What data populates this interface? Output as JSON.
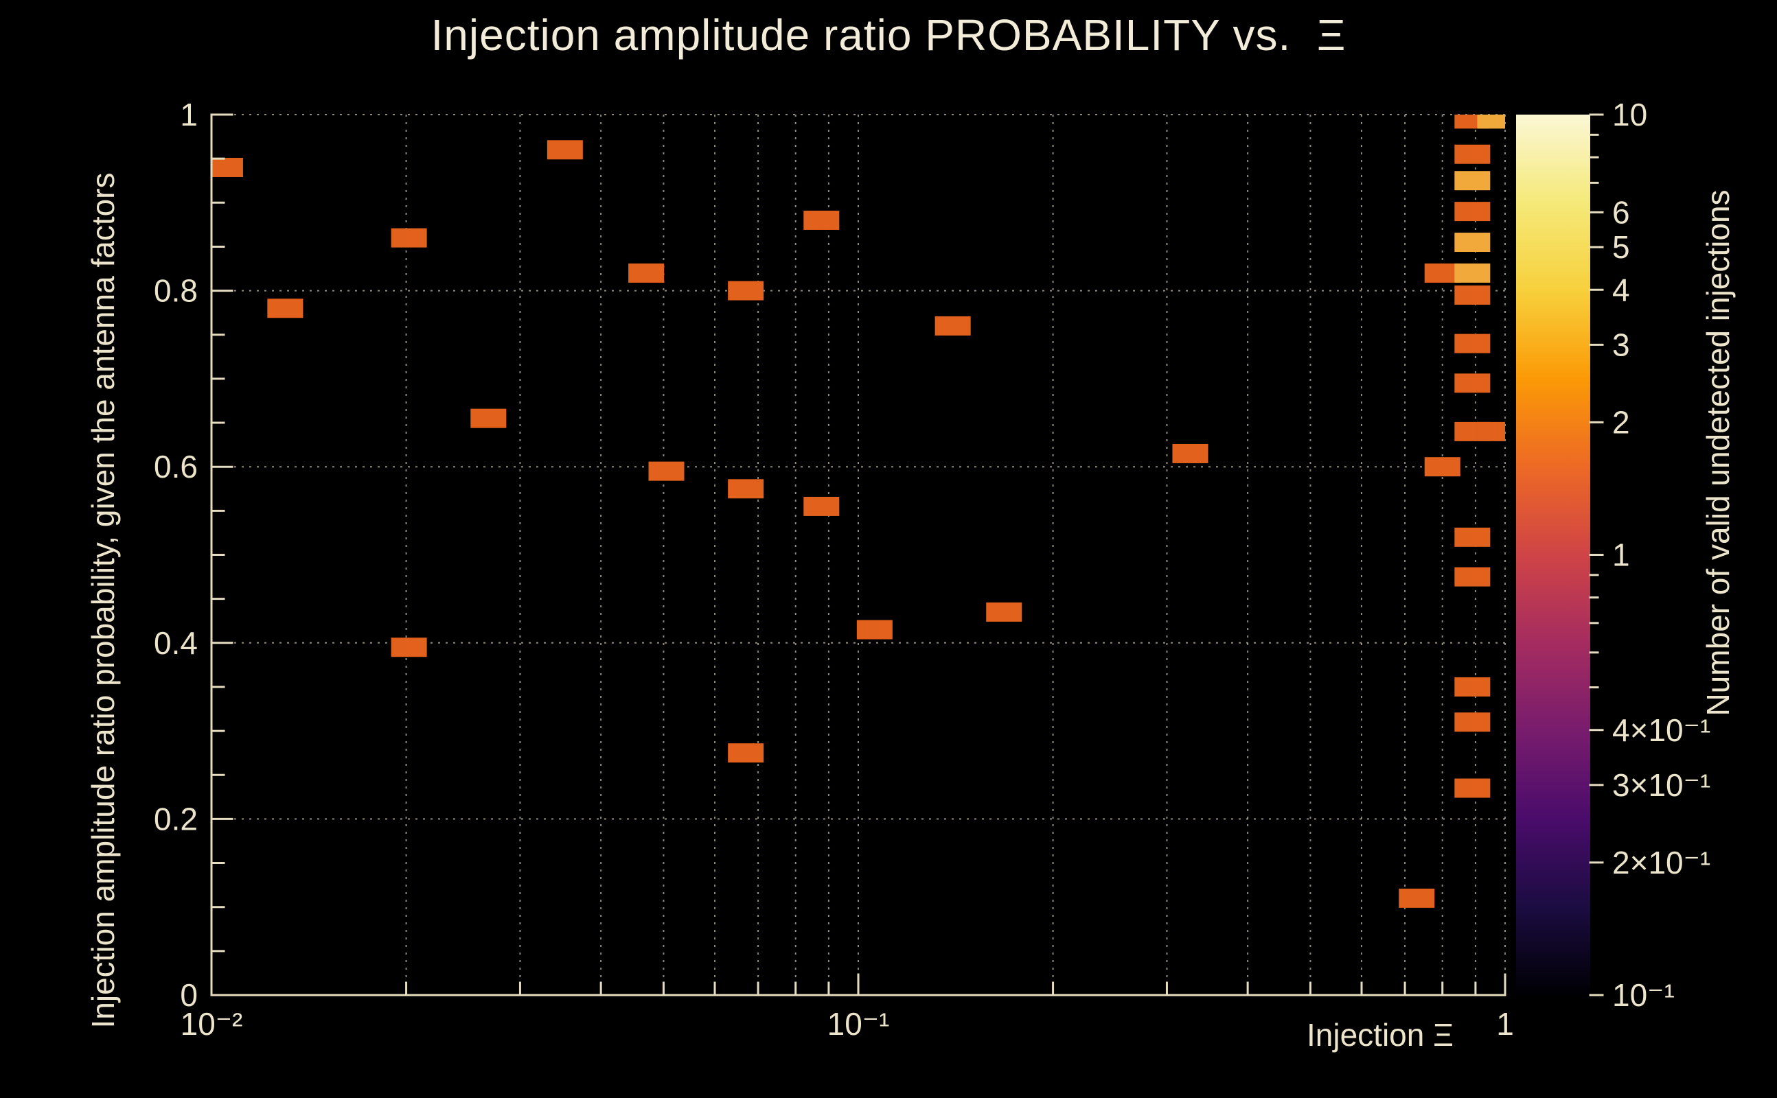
{
  "title": "Injection amplitude ratio PROBABILITY vs.  Ξ",
  "axes": {
    "x_label": "Injection Ξ",
    "y_label": "Injection amplitude ratio probability, given the antenna factors",
    "z_label": "Number of valid undetected injections"
  },
  "colors": {
    "background": "#000000",
    "text": "#ece4cb",
    "axis": "#e6dcc0",
    "grid": "#cfc6ad",
    "title": "#f3ecd8"
  },
  "chart_data": {
    "type": "heatmap",
    "x_scale": "log",
    "y_scale": "linear",
    "z_scale": "log",
    "xlim": [
      0.01,
      1
    ],
    "ylim": [
      0,
      1
    ],
    "zlim": [
      0.1,
      10
    ],
    "grid": true,
    "legend_position": "colorbar-right",
    "marker": {
      "w": 52,
      "h": 28
    },
    "palette": {
      "1": "#e2611c",
      "3": "#f1a93c",
      "4": "#f6c04e"
    },
    "colorbar_gradient": [
      [
        0.0,
        "#000004"
      ],
      [
        0.1,
        "#1b0c41"
      ],
      [
        0.2,
        "#4a0c6b"
      ],
      [
        0.3,
        "#781c6d"
      ],
      [
        0.4,
        "#a52c60"
      ],
      [
        0.5,
        "#cf4446"
      ],
      [
        0.6,
        "#ed6925"
      ],
      [
        0.7,
        "#fb9a06"
      ],
      [
        0.8,
        "#f7d03c"
      ],
      [
        0.9,
        "#f5e979"
      ],
      [
        1.0,
        "#fbf7d5"
      ]
    ],
    "x_ticks": [
      {
        "v": 0.01,
        "label": "10⁻²"
      },
      {
        "v": 0.1,
        "label": "10⁻¹"
      },
      {
        "v": 1,
        "label": "1"
      }
    ],
    "x_minor": [
      0.02,
      0.03,
      0.04,
      0.05,
      0.06,
      0.07,
      0.08,
      0.09,
      0.2,
      0.3,
      0.4,
      0.5,
      0.6,
      0.7,
      0.8,
      0.9
    ],
    "x_grid": [
      0.02,
      0.03,
      0.04,
      0.05,
      0.06,
      0.07,
      0.08,
      0.09,
      0.1,
      0.2,
      0.3,
      0.4,
      0.5,
      0.6,
      0.7,
      0.8,
      0.9,
      1
    ],
    "y_ticks": [
      {
        "v": 0,
        "label": "0"
      },
      {
        "v": 0.2,
        "label": "0.2"
      },
      {
        "v": 0.4,
        "label": "0.4"
      },
      {
        "v": 0.6,
        "label": "0.6"
      },
      {
        "v": 0.8,
        "label": "0.8"
      },
      {
        "v": 1,
        "label": "1"
      }
    ],
    "y_minor": [
      0.05,
      0.1,
      0.15,
      0.25,
      0.3,
      0.35,
      0.45,
      0.5,
      0.55,
      0.65,
      0.7,
      0.75,
      0.85,
      0.9,
      0.95
    ],
    "y_grid": [
      0.2,
      0.4,
      0.6,
      0.8,
      1
    ],
    "z_ticks": [
      {
        "v": 10,
        "label": "10"
      },
      {
        "v": 6,
        "label": "6"
      },
      {
        "v": 5,
        "label": "5"
      },
      {
        "v": 4,
        "label": "4"
      },
      {
        "v": 3,
        "label": "3"
      },
      {
        "v": 2,
        "label": "2"
      },
      {
        "v": 1,
        "label": "1"
      },
      {
        "v": 0.4,
        "label": "4×10⁻¹"
      },
      {
        "v": 0.3,
        "label": "3×10⁻¹"
      },
      {
        "v": 0.2,
        "label": "2×10⁻¹"
      },
      {
        "v": 0.1,
        "label": "10⁻¹"
      }
    ],
    "z_minor": [
      0.5,
      0.6,
      0.7,
      0.8,
      0.9,
      7,
      8,
      9
    ],
    "points": [
      [
        0.0105,
        0.94,
        1
      ],
      [
        0.013,
        0.78,
        1
      ],
      [
        0.0202,
        0.86,
        1
      ],
      [
        0.0202,
        0.395,
        1
      ],
      [
        0.0268,
        0.655,
        1
      ],
      [
        0.0352,
        0.96,
        1
      ],
      [
        0.047,
        0.82,
        1
      ],
      [
        0.0505,
        0.595,
        1
      ],
      [
        0.067,
        0.8,
        1
      ],
      [
        0.067,
        0.575,
        1
      ],
      [
        0.067,
        0.275,
        1
      ],
      [
        0.0877,
        0.88,
        1
      ],
      [
        0.0877,
        0.555,
        1
      ],
      [
        0.106,
        0.415,
        1
      ],
      [
        0.14,
        0.76,
        1
      ],
      [
        0.168,
        0.435,
        1
      ],
      [
        0.326,
        0.615,
        1
      ],
      [
        0.73,
        0.11,
        1
      ],
      [
        0.8,
        0.82,
        1
      ],
      [
        0.8,
        0.6,
        1
      ],
      [
        0.89,
        0.995,
        1
      ],
      [
        0.965,
        0.995,
        3
      ],
      [
        0.89,
        0.955,
        1
      ],
      [
        0.89,
        0.925,
        3
      ],
      [
        0.89,
        0.89,
        1
      ],
      [
        0.89,
        0.855,
        3
      ],
      [
        0.89,
        0.82,
        3
      ],
      [
        0.89,
        0.795,
        1
      ],
      [
        0.89,
        0.74,
        1
      ],
      [
        0.89,
        0.695,
        1
      ],
      [
        0.89,
        0.64,
        1
      ],
      [
        0.965,
        0.64,
        1
      ],
      [
        0.89,
        0.52,
        1
      ],
      [
        0.89,
        0.475,
        1
      ],
      [
        0.89,
        0.35,
        1
      ],
      [
        0.89,
        0.31,
        1
      ],
      [
        0.89,
        0.235,
        1
      ]
    ]
  }
}
